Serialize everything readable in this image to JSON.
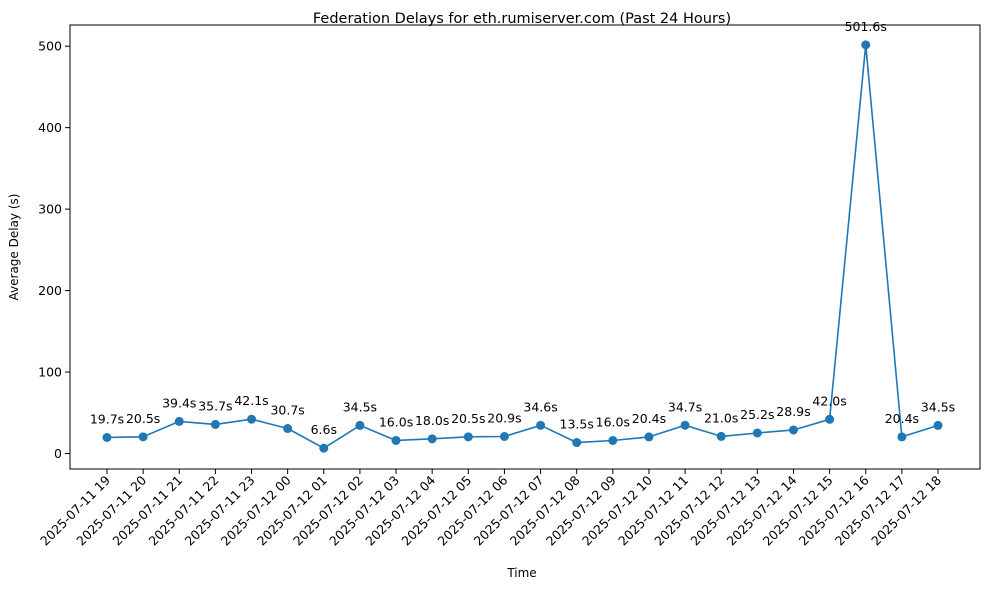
{
  "chart_data": {
    "type": "line",
    "title": "Federation Delays for eth.rumiserver.com (Past 24 Hours)",
    "xlabel": "Time",
    "ylabel": "Average Delay (s)",
    "ylim": [
      -19,
      526
    ],
    "yticks": [
      0,
      100,
      200,
      300,
      400,
      500
    ],
    "grid": false,
    "legend": "none",
    "categories": [
      "2025-07-11 19",
      "2025-07-11 20",
      "2025-07-11 21",
      "2025-07-11 22",
      "2025-07-11 23",
      "2025-07-12 00",
      "2025-07-12 01",
      "2025-07-12 02",
      "2025-07-12 03",
      "2025-07-12 04",
      "2025-07-12 05",
      "2025-07-12 06",
      "2025-07-12 07",
      "2025-07-12 08",
      "2025-07-12 09",
      "2025-07-12 10",
      "2025-07-12 11",
      "2025-07-12 12",
      "2025-07-12 13",
      "2025-07-12 14",
      "2025-07-12 15",
      "2025-07-12 16",
      "2025-07-12 17",
      "2025-07-12 18"
    ],
    "series": [
      {
        "values": [
          19.7,
          20.5,
          39.4,
          35.7,
          42.1,
          30.7,
          6.6,
          34.5,
          16.0,
          18.0,
          20.5,
          20.9,
          34.6,
          13.5,
          16.0,
          20.4,
          34.7,
          21.0,
          25.2,
          28.9,
          42.0,
          501.6,
          20.4,
          34.5
        ],
        "color": "#1f77b4"
      }
    ],
    "data_labels": [
      "19.7s",
      "20.5s",
      "39.4s",
      "35.7s",
      "42.1s",
      "30.7s",
      "6.6s",
      "34.5s",
      "16.0s",
      "18.0s",
      "20.5s",
      "20.9s",
      "34.6s",
      "13.5s",
      "16.0s",
      "20.4s",
      "34.7s",
      "21.0s",
      "25.2s",
      "28.9s",
      "42.0s",
      "501.6s",
      "20.4s",
      "34.5s"
    ]
  }
}
